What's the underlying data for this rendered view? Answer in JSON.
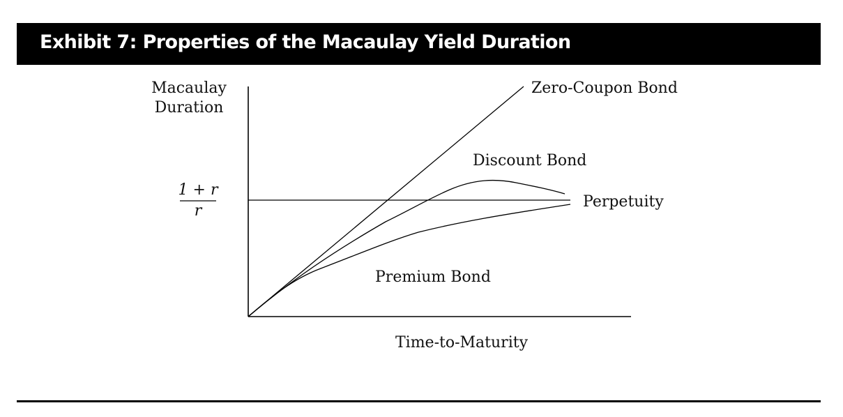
{
  "header": {
    "title": "Exhibit 7: Properties of the Macaulay Yield Duration"
  },
  "axes": {
    "y_label_line1": "Macaulay",
    "y_label_line2": "Duration",
    "x_label": "Time-to-Maturity",
    "y_mark_numerator": "1 + r",
    "y_mark_denominator": "r"
  },
  "curves": {
    "zero_coupon": "Zero-Coupon Bond",
    "discount": "Discount Bond",
    "perpetuity": "Perpetuity",
    "premium": "Premium Bond"
  },
  "colors": {
    "header_bg": "#000000",
    "header_text": "#ffffff",
    "line": "#000000"
  }
}
